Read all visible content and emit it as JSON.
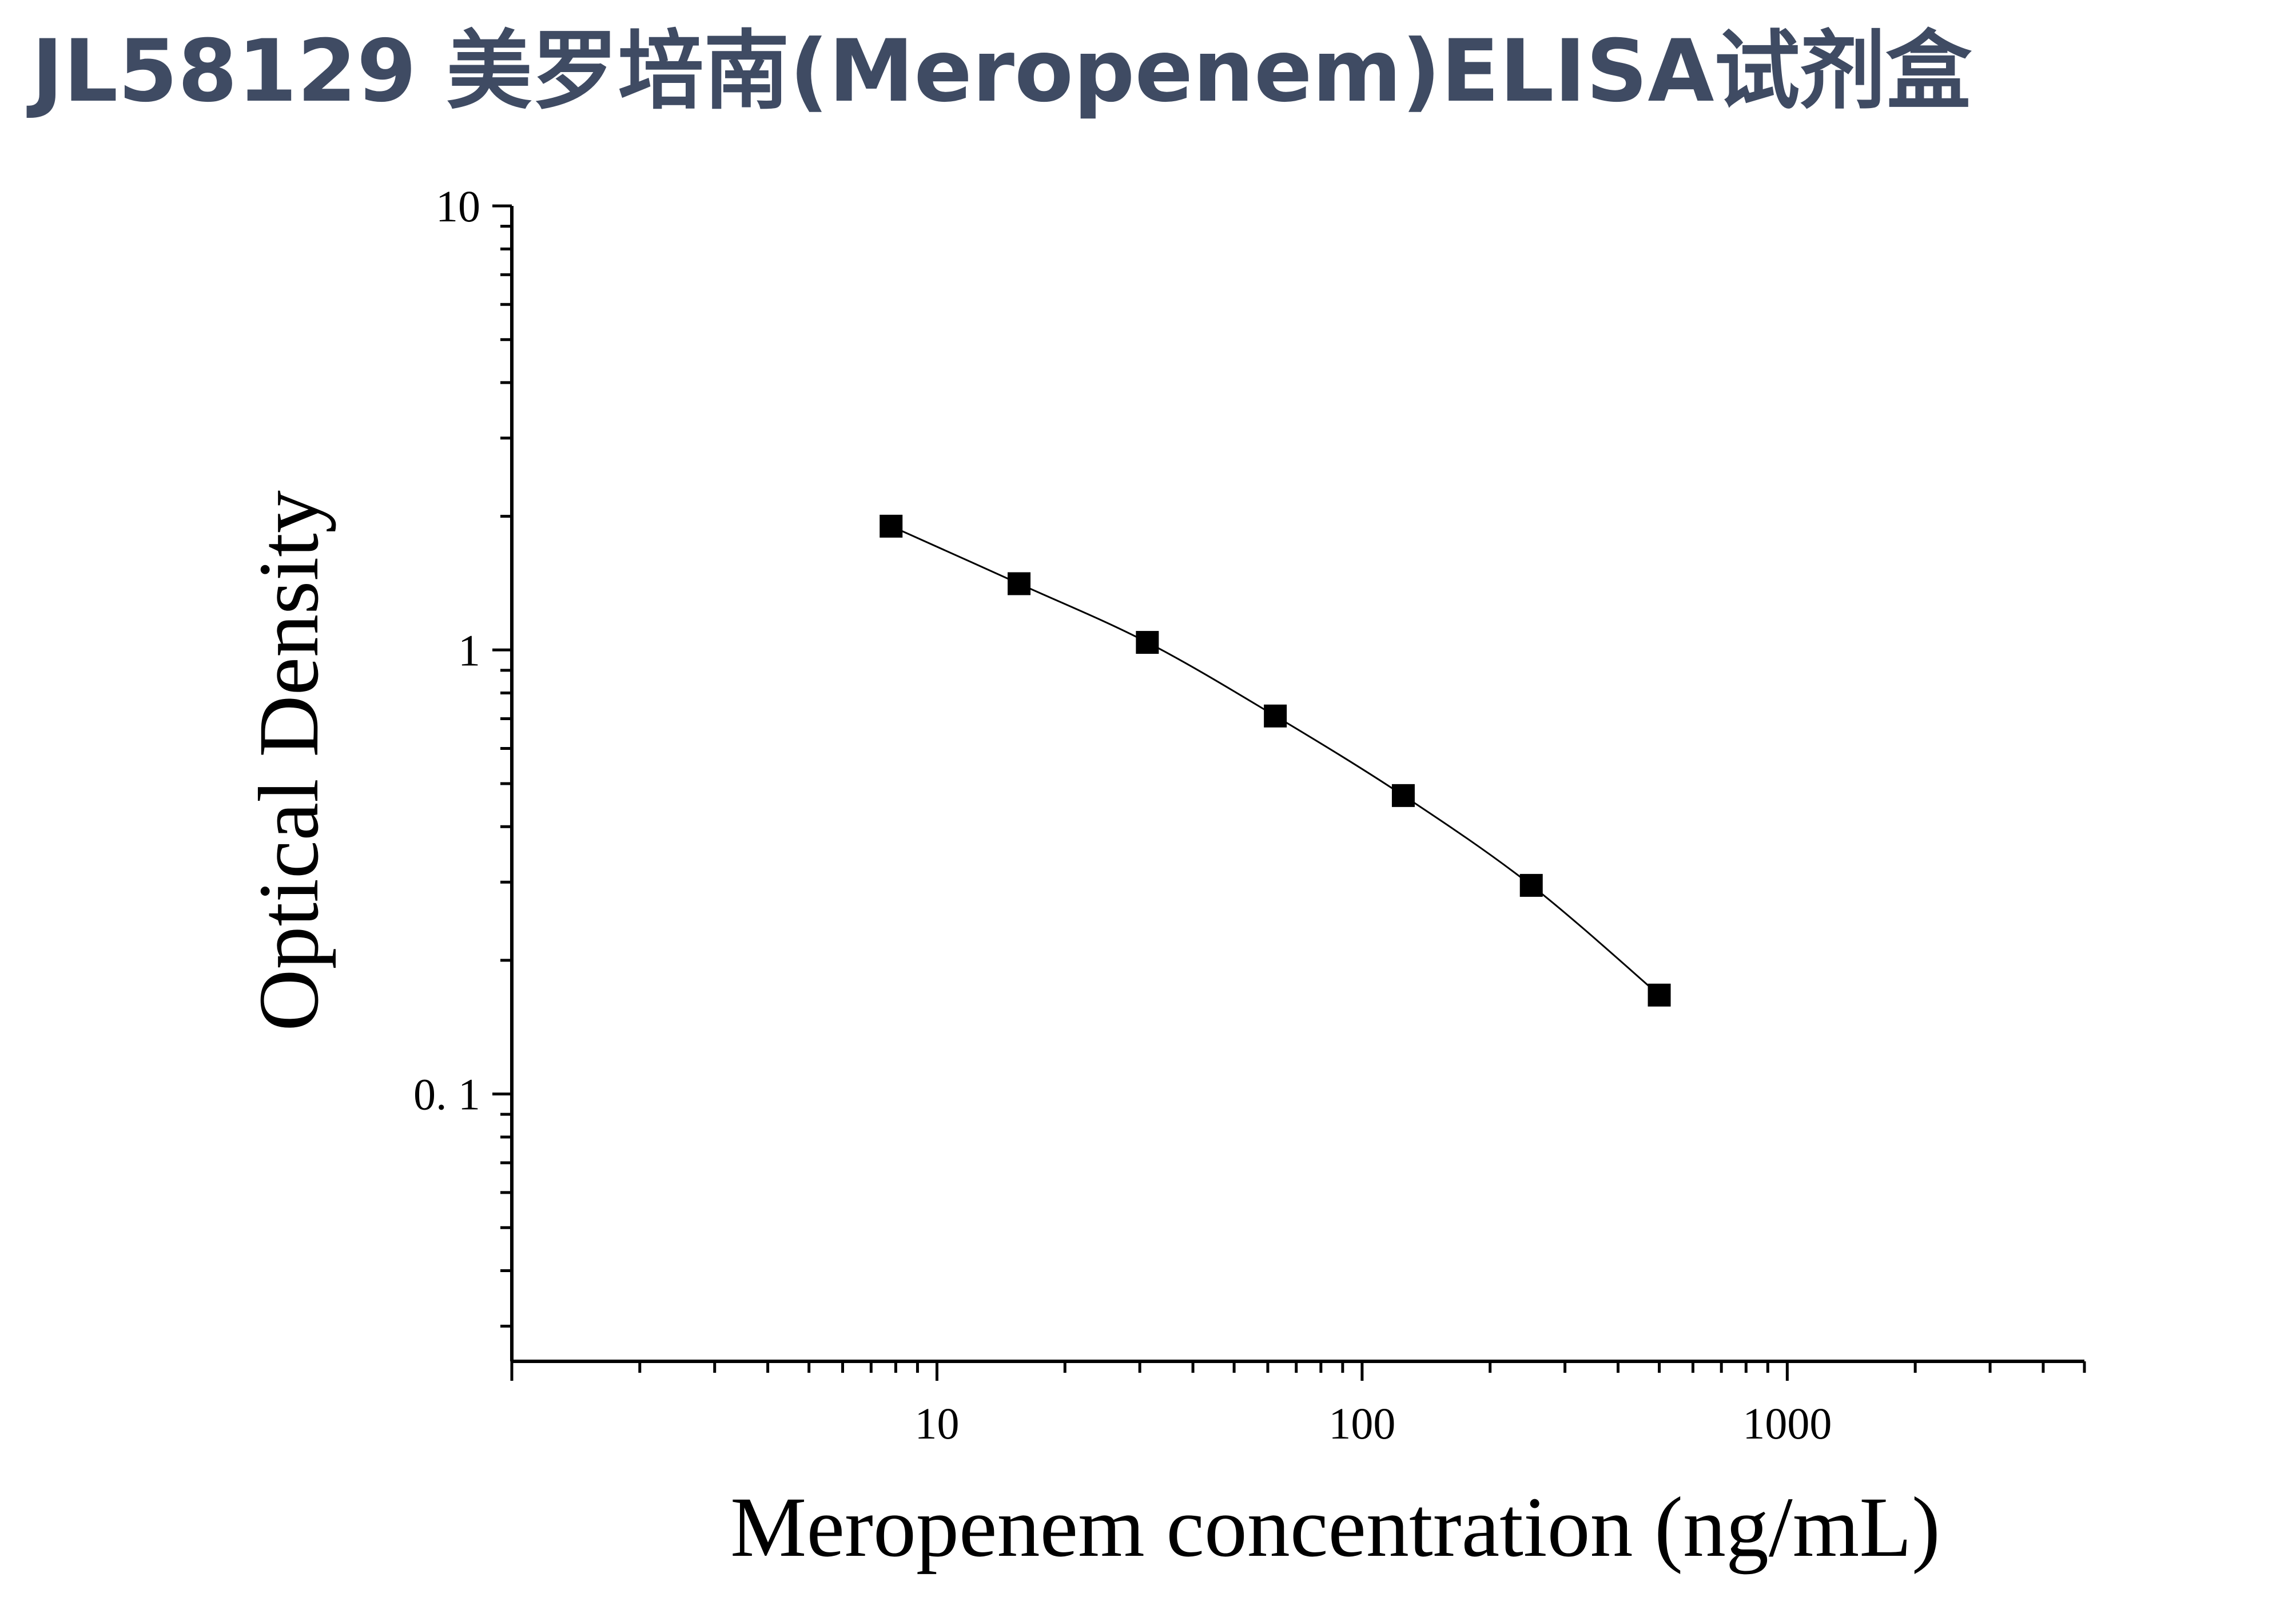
{
  "title": "JL58129 美罗培南(Meropenem)ELISA试剂盒",
  "chart_data": {
    "type": "scatter",
    "title": "JL58129 美罗培南(Meropenem)ELISA试剂盒",
    "xlabel": "Meropenem concentration (ng/mL)",
    "ylabel": "Optical Density",
    "xscale": "log",
    "yscale": "log",
    "xlim": [
      1,
      5000
    ],
    "ylim": [
      0.025,
      10
    ],
    "xticks": [
      10,
      100,
      1000
    ],
    "xtick_labels": [
      "10",
      "100",
      "1000"
    ],
    "yticks": [
      0.1,
      1,
      10
    ],
    "ytick_labels": [
      "0. 1",
      "1",
      "10"
    ],
    "grid": false,
    "legend": "none",
    "fit_curve": true,
    "marker": "square",
    "color": "#000000",
    "series": [
      {
        "x": [
          7.8,
          15.6,
          31.25,
          62.5,
          125,
          250,
          500
        ],
        "y": [
          1.9,
          1.41,
          1.04,
          0.71,
          0.47,
          0.295,
          0.167
        ]
      }
    ]
  }
}
